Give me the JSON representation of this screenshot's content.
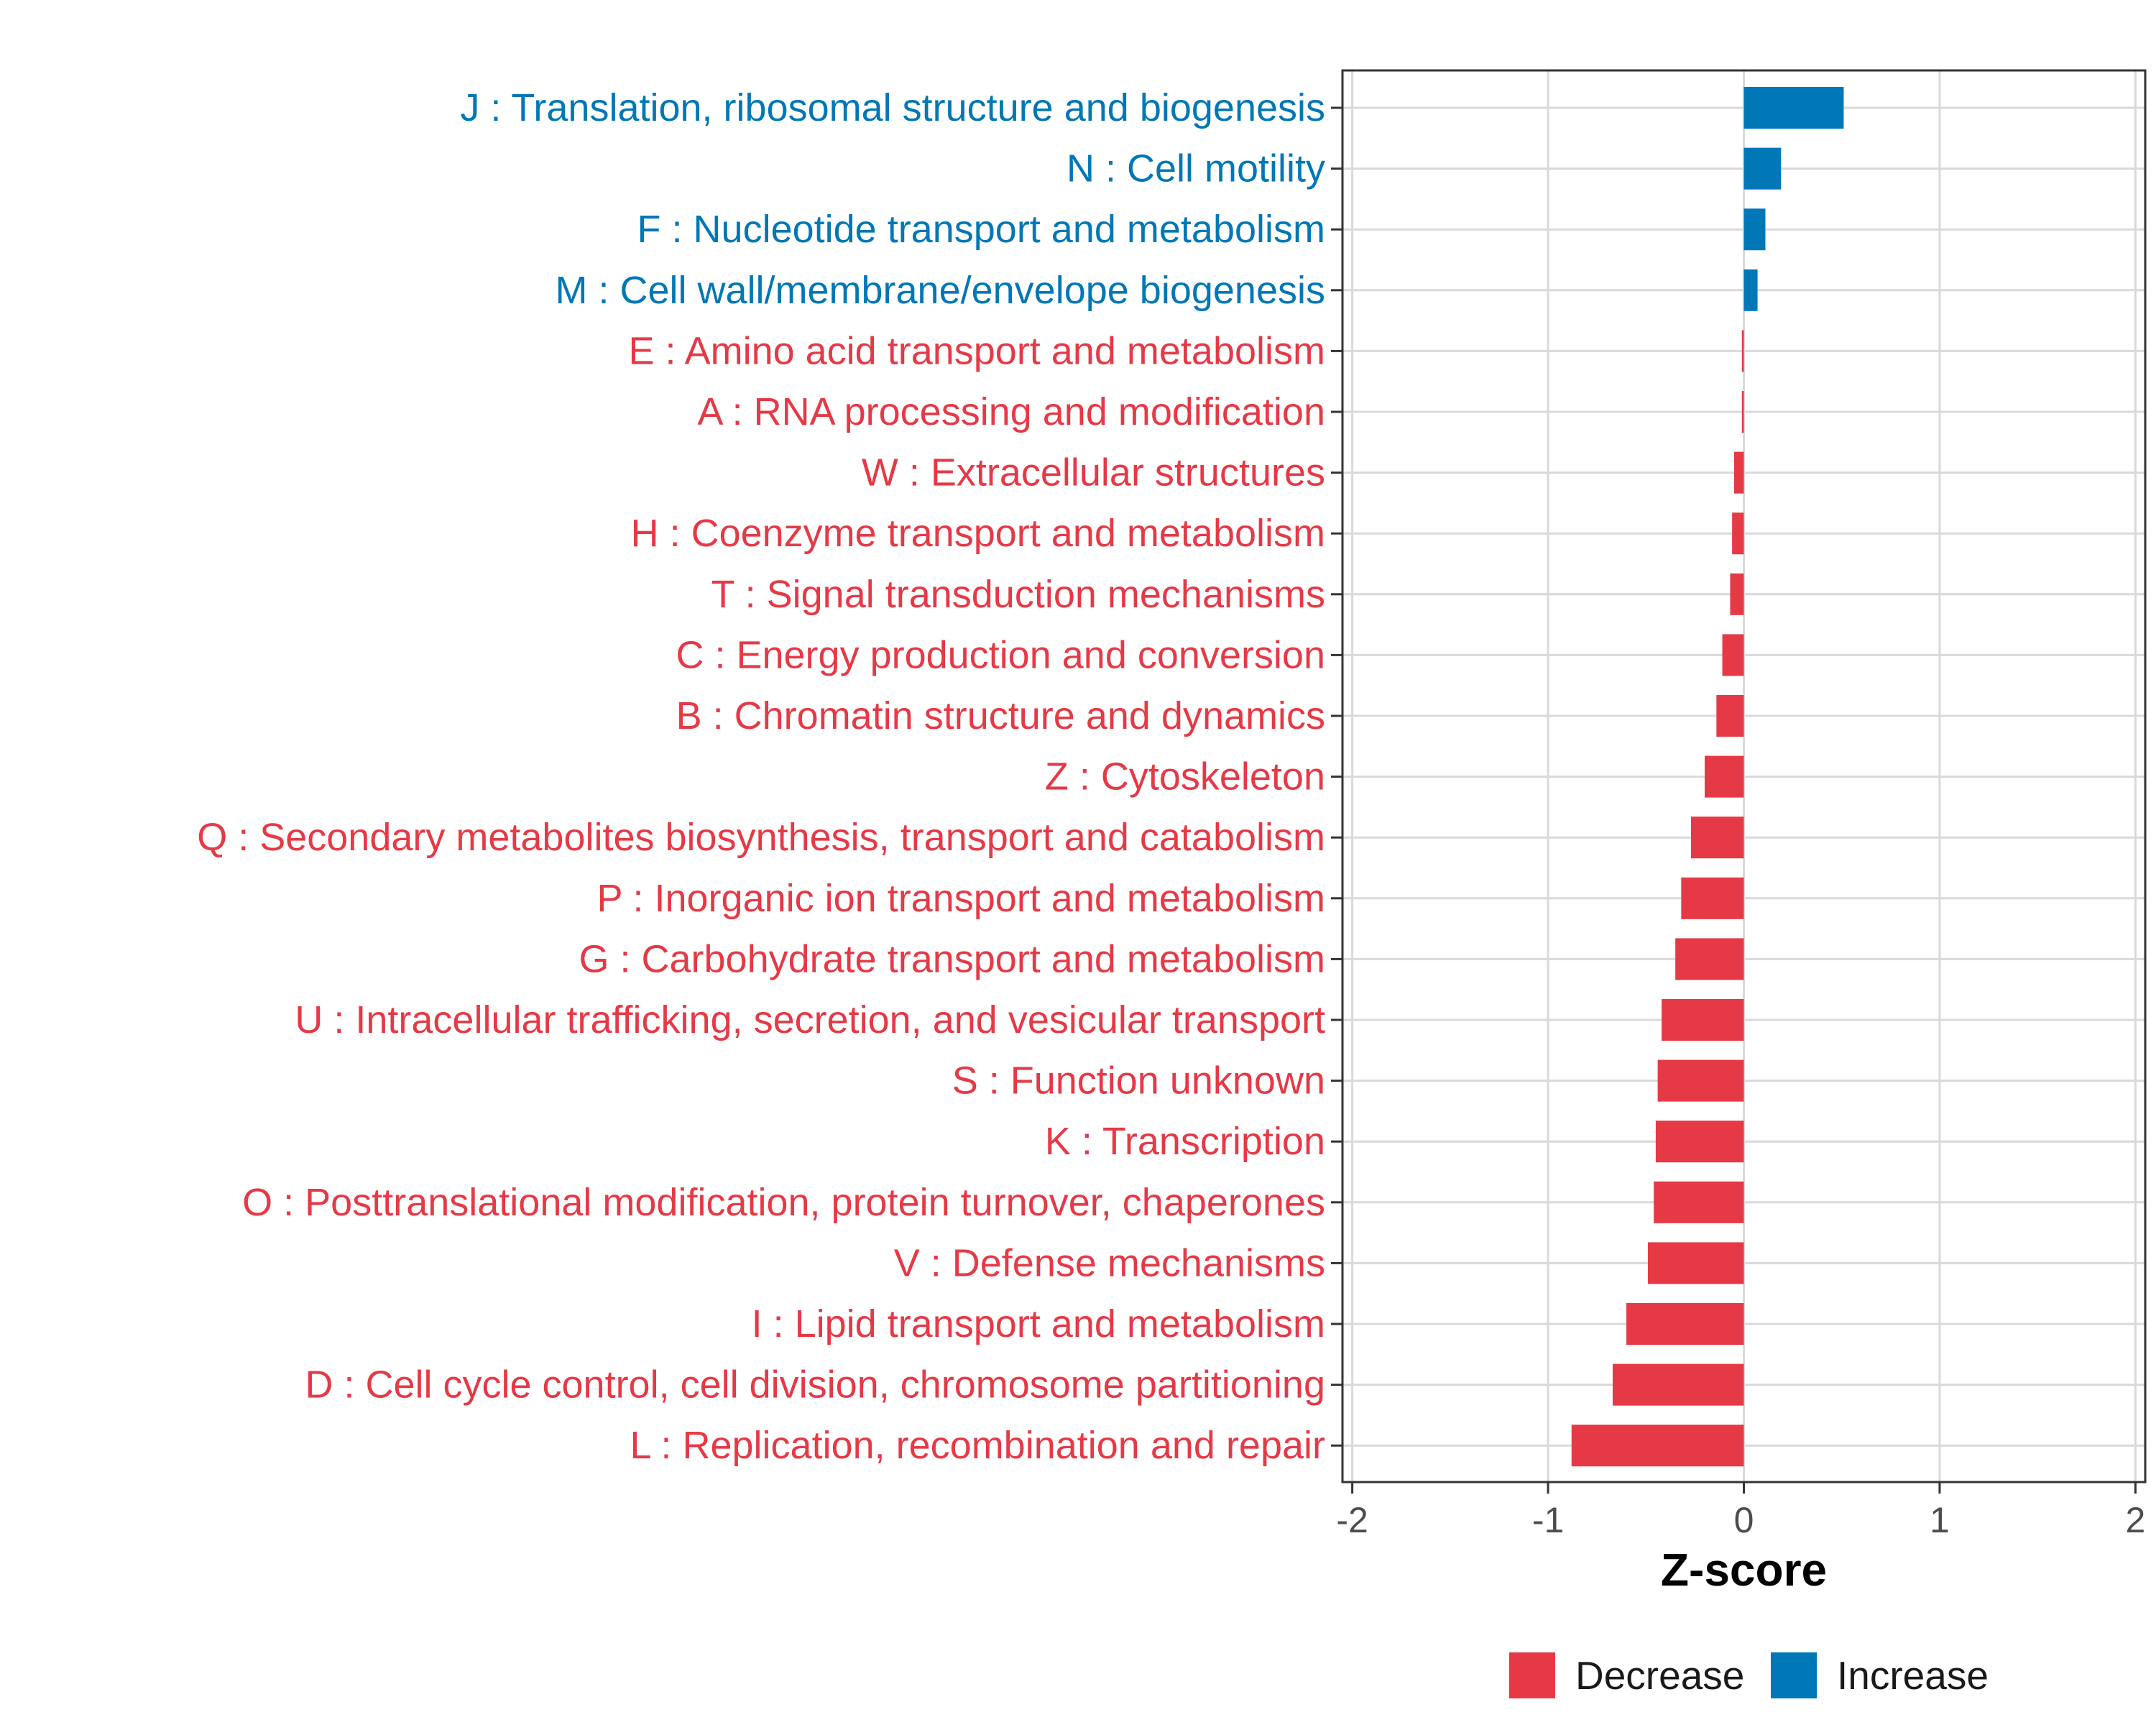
{
  "chart_data": {
    "type": "bar",
    "orientation": "horizontal",
    "title": "",
    "xlabel": "Z-score",
    "ylabel": "",
    "xlim": [
      -2.05,
      2.05
    ],
    "xticks": [
      -2,
      -1,
      0,
      1,
      2
    ],
    "xtick_labels": [
      "-2",
      "-1",
      "0",
      "1",
      "2"
    ],
    "grid": true,
    "legend_position": "bottom",
    "categories": [
      "J : Translation, ribosomal structure and biogenesis",
      "N : Cell motility",
      "F : Nucleotide transport and metabolism",
      "M : Cell wall/membrane/envelope biogenesis",
      "E : Amino acid transport and metabolism",
      "A : RNA processing and modification",
      "W : Extracellular structures",
      "H : Coenzyme transport and metabolism",
      "T : Signal transduction mechanisms",
      "C : Energy production and conversion",
      "B : Chromatin structure and dynamics",
      "Z : Cytoskeleton",
      "Q : Secondary metabolites biosynthesis, transport and catabolism",
      "P : Inorganic ion transport and metabolism",
      "G : Carbohydrate transport and metabolism",
      "U : Intracellular trafficking, secretion, and vesicular transport",
      "S : Function unknown",
      "K : Transcription",
      "O : Posttranslational modification, protein turnover, chaperones",
      "V : Defense mechanisms",
      "I : Lipid transport and metabolism",
      "D : Cell cycle control, cell division, chromosome partitioning",
      "L : Replication, recombination and repair"
    ],
    "values": [
      0.51,
      0.19,
      0.11,
      0.07,
      -0.01,
      -0.01,
      -0.05,
      -0.06,
      -0.07,
      -0.11,
      -0.14,
      -0.2,
      -0.27,
      -0.32,
      -0.35,
      -0.42,
      -0.44,
      -0.45,
      -0.46,
      -0.49,
      -0.6,
      -0.67,
      -0.88
    ],
    "groups": [
      "Increase",
      "Increase",
      "Increase",
      "Increase",
      "Decrease",
      "Decrease",
      "Decrease",
      "Decrease",
      "Decrease",
      "Decrease",
      "Decrease",
      "Decrease",
      "Decrease",
      "Decrease",
      "Decrease",
      "Decrease",
      "Decrease",
      "Decrease",
      "Decrease",
      "Decrease",
      "Decrease",
      "Decrease",
      "Decrease"
    ],
    "legend": [
      {
        "name": "Decrease",
        "color": "#e63946"
      },
      {
        "name": "Increase",
        "color": "#0077b6"
      }
    ]
  }
}
